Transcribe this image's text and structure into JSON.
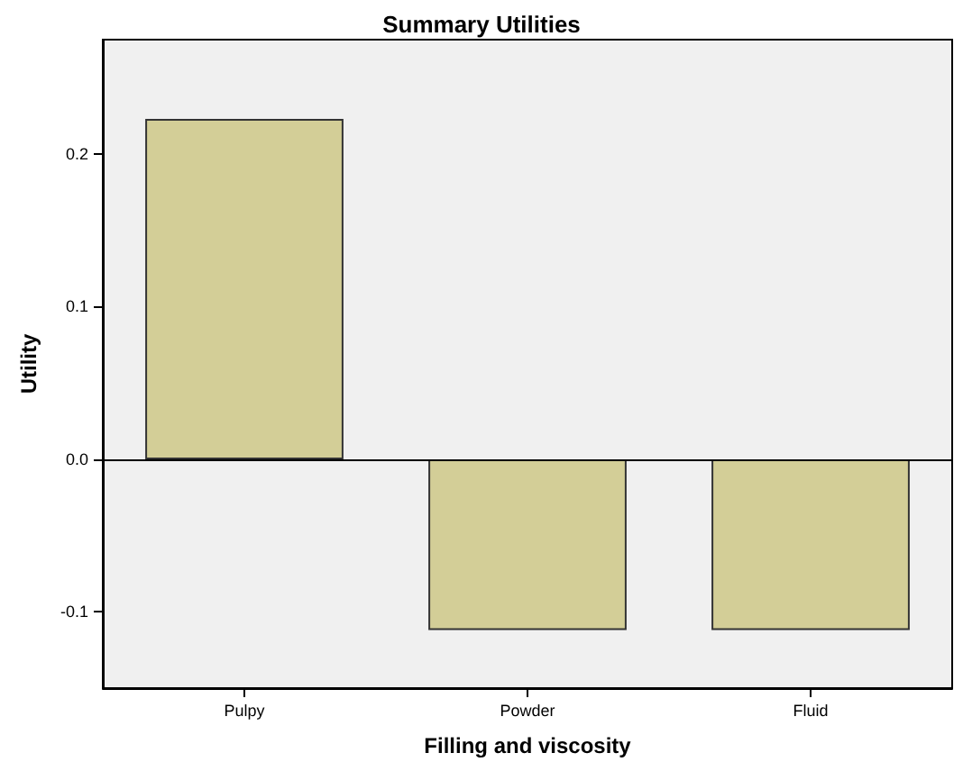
{
  "chart_data": {
    "type": "bar",
    "title": "Summary Utilities",
    "xlabel": "Filling and viscosity",
    "ylabel": "Utility",
    "categories": [
      "Pulpy",
      "Powder",
      "Fluid"
    ],
    "values": [
      0.223,
      -0.112,
      -0.112
    ],
    "color": "#d3ce97",
    "ylim": [
      -0.15,
      0.275
    ],
    "yticks": [
      {
        "value": -0.1,
        "label": "-0.1"
      },
      {
        "value": 0,
        "label": "0.0"
      },
      {
        "value": 0.1,
        "label": "0.1"
      },
      {
        "value": 0.2,
        "label": "0.2"
      }
    ],
    "ref_lines": [
      {
        "axis": "y",
        "value": 0,
        "color": "#000000"
      }
    ],
    "grid": false
  }
}
